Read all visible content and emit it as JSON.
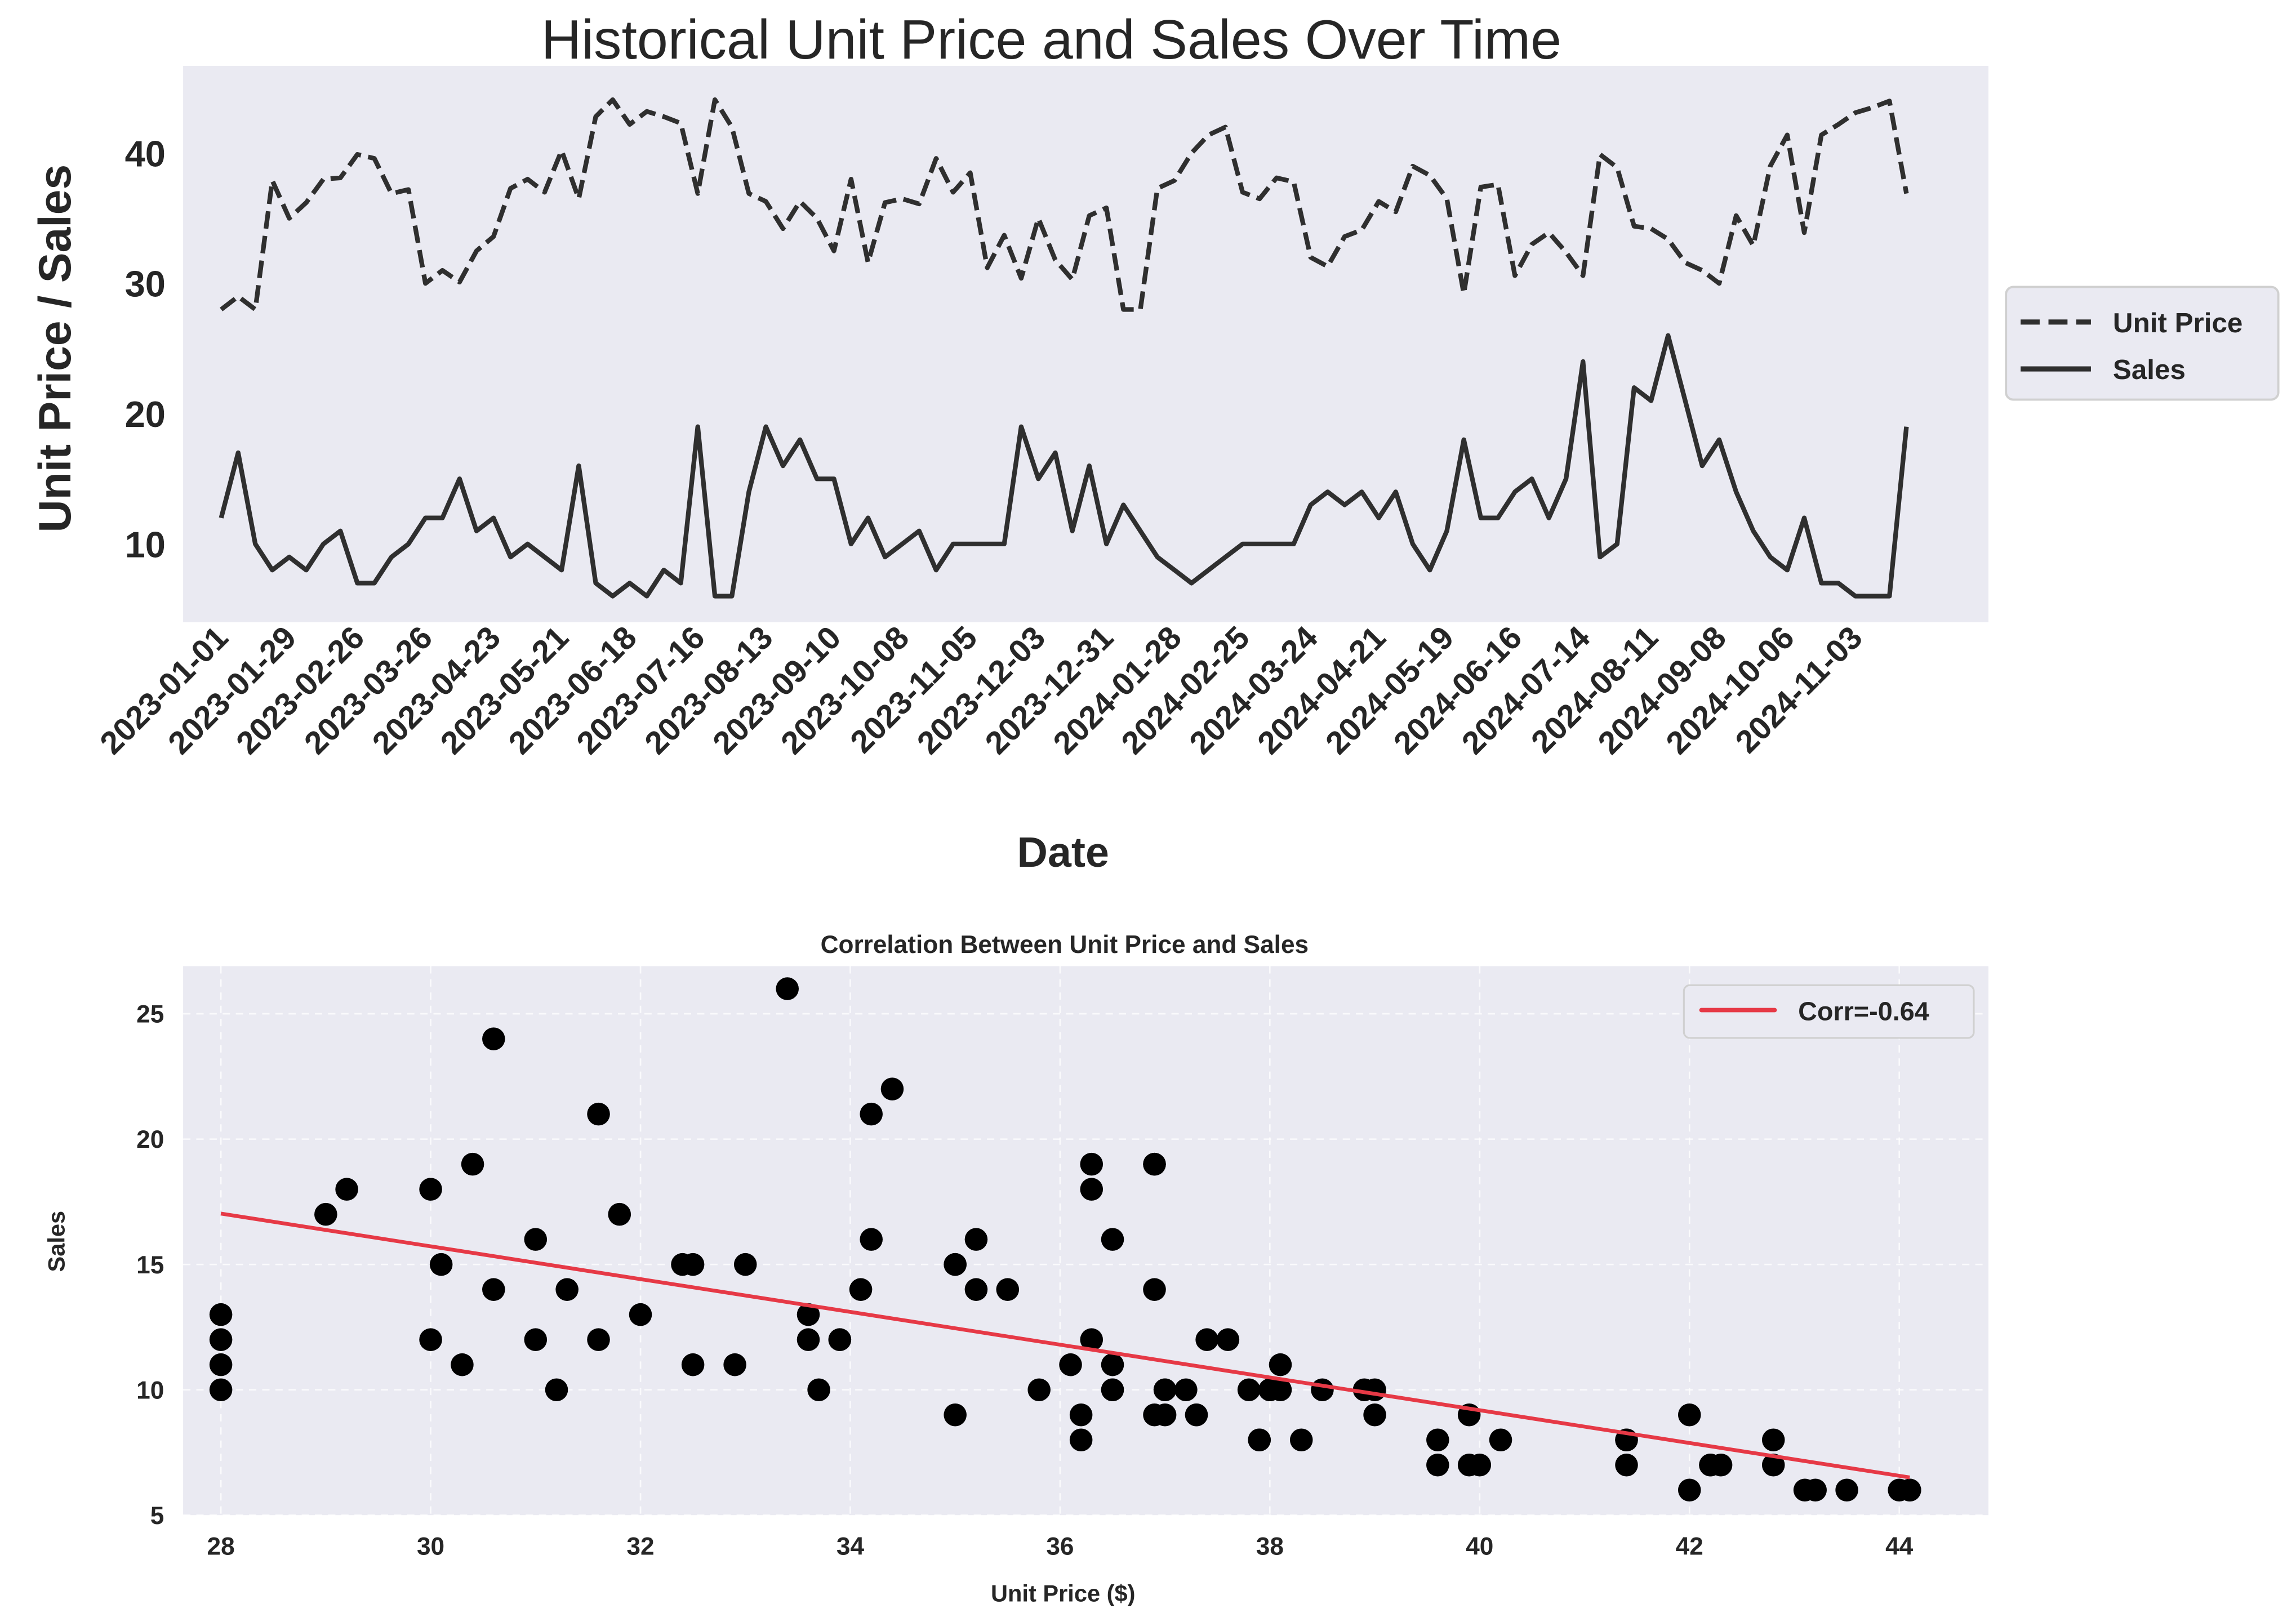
{
  "colors": {
    "plot_background": "#EAEAF2",
    "line_color": "#2f2f2f",
    "point_color": "#000000",
    "trend_color": "#E63946",
    "grid_color": "#ffffff"
  },
  "chart_data": [
    {
      "type": "line",
      "title": "Historical Unit Price and Sales Over Time",
      "xlabel": "Date",
      "ylabel": "Unit Price / Sales",
      "ylim": [
        4.0,
        46.7
      ],
      "yticks": [
        10,
        20,
        30,
        40
      ],
      "grid": false,
      "legend_placement": "outside-right",
      "x_start_date": "2023-01-01",
      "x_frequency": "weekly",
      "xtick_labels": [
        "2023-01-01",
        "2023-01-29",
        "2023-02-26",
        "2023-03-26",
        "2023-04-23",
        "2023-05-21",
        "2023-06-18",
        "2023-07-16",
        "2023-08-13",
        "2023-09-10",
        "2023-10-08",
        "2023-11-05",
        "2023-12-03",
        "2023-12-31",
        "2024-01-28",
        "2024-02-25",
        "2024-03-24",
        "2024-04-21",
        "2024-05-19",
        "2024-06-16",
        "2024-07-14",
        "2024-08-11",
        "2024-09-08",
        "2024-10-06",
        "2024-11-03"
      ],
      "series": [
        {
          "name": "Unit Price",
          "style": "dashed",
          "values": [
            28.0,
            29.0,
            28.0,
            37.9,
            35.0,
            36.2,
            38.0,
            38.1,
            39.9,
            39.6,
            36.9,
            37.2,
            30.0,
            31.0,
            30.1,
            32.5,
            33.6,
            37.3,
            38.0,
            37.0,
            40.2,
            36.5,
            42.8,
            44.1,
            42.2,
            43.2,
            42.8,
            42.3,
            36.9,
            44.1,
            42.0,
            36.9,
            36.3,
            34.2,
            36.3,
            35.0,
            32.5,
            38.0,
            31.6,
            36.2,
            36.5,
            36.1,
            39.6,
            37.0,
            38.5,
            31.2,
            33.7,
            30.4,
            35.0,
            31.8,
            30.3,
            35.2,
            35.8,
            28.0,
            28.0,
            37.3,
            37.9,
            40.0,
            41.4,
            42.0,
            37.0,
            36.5,
            38.1,
            37.8,
            32.0,
            31.3,
            33.6,
            34.1,
            36.3,
            35.5,
            39.0,
            38.3,
            36.5,
            29.2,
            37.4,
            37.6,
            30.6,
            33.0,
            33.9,
            32.4,
            30.6,
            39.9,
            38.9,
            34.4,
            34.2,
            33.4,
            31.6,
            31.0,
            30.0,
            35.2,
            32.9,
            39.0,
            41.4,
            33.9,
            41.4,
            42.2,
            43.1,
            43.5,
            44.0,
            36.9
          ]
        },
        {
          "name": "Sales",
          "style": "solid",
          "values": [
            12,
            17,
            10,
            8,
            9,
            8,
            10,
            11,
            7,
            7,
            9,
            10,
            12,
            12,
            15,
            11,
            12,
            9,
            10,
            9,
            8,
            16,
            7,
            6,
            7,
            6,
            8,
            7,
            19,
            6,
            6,
            14,
            19,
            16,
            18,
            15,
            15,
            10,
            12,
            9,
            10,
            11,
            8,
            10,
            10,
            10,
            10,
            19,
            15,
            17,
            11,
            16,
            10,
            13,
            11,
            9,
            8,
            7,
            8,
            9,
            10,
            10,
            10,
            10,
            13,
            14,
            13,
            14,
            12,
            14,
            10,
            8,
            11,
            18,
            12,
            12,
            14,
            15,
            12,
            15,
            24,
            9,
            10,
            22,
            21,
            26,
            21,
            16,
            18,
            14,
            11,
            9,
            8,
            12,
            7,
            7,
            6,
            6,
            6,
            19
          ]
        }
      ]
    },
    {
      "type": "scatter",
      "title": "Correlation Between Unit Price and Sales",
      "xlabel": "Unit Price ($)",
      "ylabel": "Sales",
      "xlim": [
        27.64,
        44.85
      ],
      "ylim": [
        5,
        26.9
      ],
      "xticks": [
        28,
        30,
        32,
        34,
        36,
        38,
        40,
        42,
        44
      ],
      "yticks": [
        5,
        10,
        15,
        20,
        25
      ],
      "grid": true,
      "grid_style": "dashed",
      "points_source": "Unit Price vs Sales (same observations as the time series)",
      "trend_line": {
        "type": "linear-fit",
        "legend_label": "Corr=-0.64"
      },
      "legend_placement": "top-right"
    }
  ]
}
